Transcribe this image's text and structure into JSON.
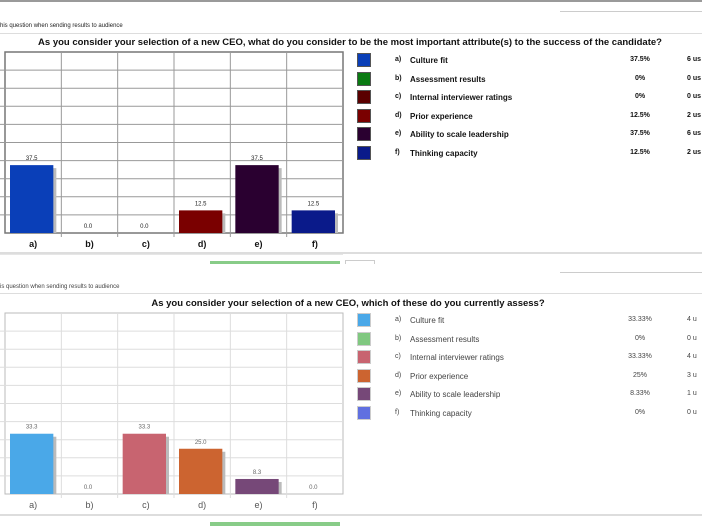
{
  "chart_data": [
    {
      "type": "bar",
      "caption": "his question when sending results to audience",
      "title": "As you consider your selection of a new CEO, what do you consider to be the most important attribute(s) to the success of the candidate?",
      "categories": [
        "a)",
        "b)",
        "c)",
        "d)",
        "e)",
        "f)"
      ],
      "values": [
        37.5,
        0.0,
        0.0,
        12.5,
        37.5,
        12.5
      ],
      "value_labels": [
        "37.5",
        "0.0",
        "0.0",
        "12.5",
        "37.5",
        "12.5"
      ],
      "colors": [
        "#0a3fb8",
        "#0a7a12",
        "#5a0000",
        "#7a0000",
        "#2a0030",
        "#0a1a8a"
      ],
      "ylim": [
        0,
        100
      ],
      "grid": true,
      "legend": "right",
      "legend_items": [
        {
          "letter": "a)",
          "label": "Culture fit",
          "pct": "37.5%",
          "users": "6 us"
        },
        {
          "letter": "b)",
          "label": "Assessment results",
          "pct": "0%",
          "users": "0 us"
        },
        {
          "letter": "c)",
          "label": "Internal interviewer ratings",
          "pct": "0%",
          "users": "0 us"
        },
        {
          "letter": "d)",
          "label": "Prior experience",
          "pct": "12.5%",
          "users": "2 us"
        },
        {
          "letter": "e)",
          "label": "Ability to scale leadership",
          "pct": "37.5%",
          "users": "6 us"
        },
        {
          "letter": "f)",
          "label": "Thinking capacity",
          "pct": "12.5%",
          "users": "2 us"
        }
      ]
    },
    {
      "type": "bar",
      "caption": "is question when sending results to audience",
      "title": "As you consider your selection of a new CEO, which of these do you currently assess?",
      "categories": [
        "a)",
        "b)",
        "c)",
        "d)",
        "e)",
        "f)"
      ],
      "values": [
        33.3,
        0.0,
        33.3,
        25.0,
        8.3,
        0.0
      ],
      "value_labels": [
        "33.3",
        "0.0",
        "33.3",
        "25.0",
        "8.3",
        "0.0"
      ],
      "colors": [
        "#4aa8e8",
        "#80c880",
        "#c86470",
        "#cc6430",
        "#764878",
        "#6070e0"
      ],
      "ylim": [
        0,
        100
      ],
      "grid": true,
      "legend": "right",
      "legend_items": [
        {
          "letter": "a)",
          "label": "Culture fit",
          "pct": "33.33%",
          "users": "4 u"
        },
        {
          "letter": "b)",
          "label": "Assessment results",
          "pct": "0%",
          "users": "0 u"
        },
        {
          "letter": "c)",
          "label": "Internal interviewer ratings",
          "pct": "33.33%",
          "users": "4 u"
        },
        {
          "letter": "d)",
          "label": "Prior experience",
          "pct": "25%",
          "users": "3 u"
        },
        {
          "letter": "e)",
          "label": "Ability to scale leadership",
          "pct": "8.33%",
          "users": "1 u"
        },
        {
          "letter": "f)",
          "label": "Thinking capacity",
          "pct": "0%",
          "users": "0 u"
        }
      ]
    }
  ]
}
